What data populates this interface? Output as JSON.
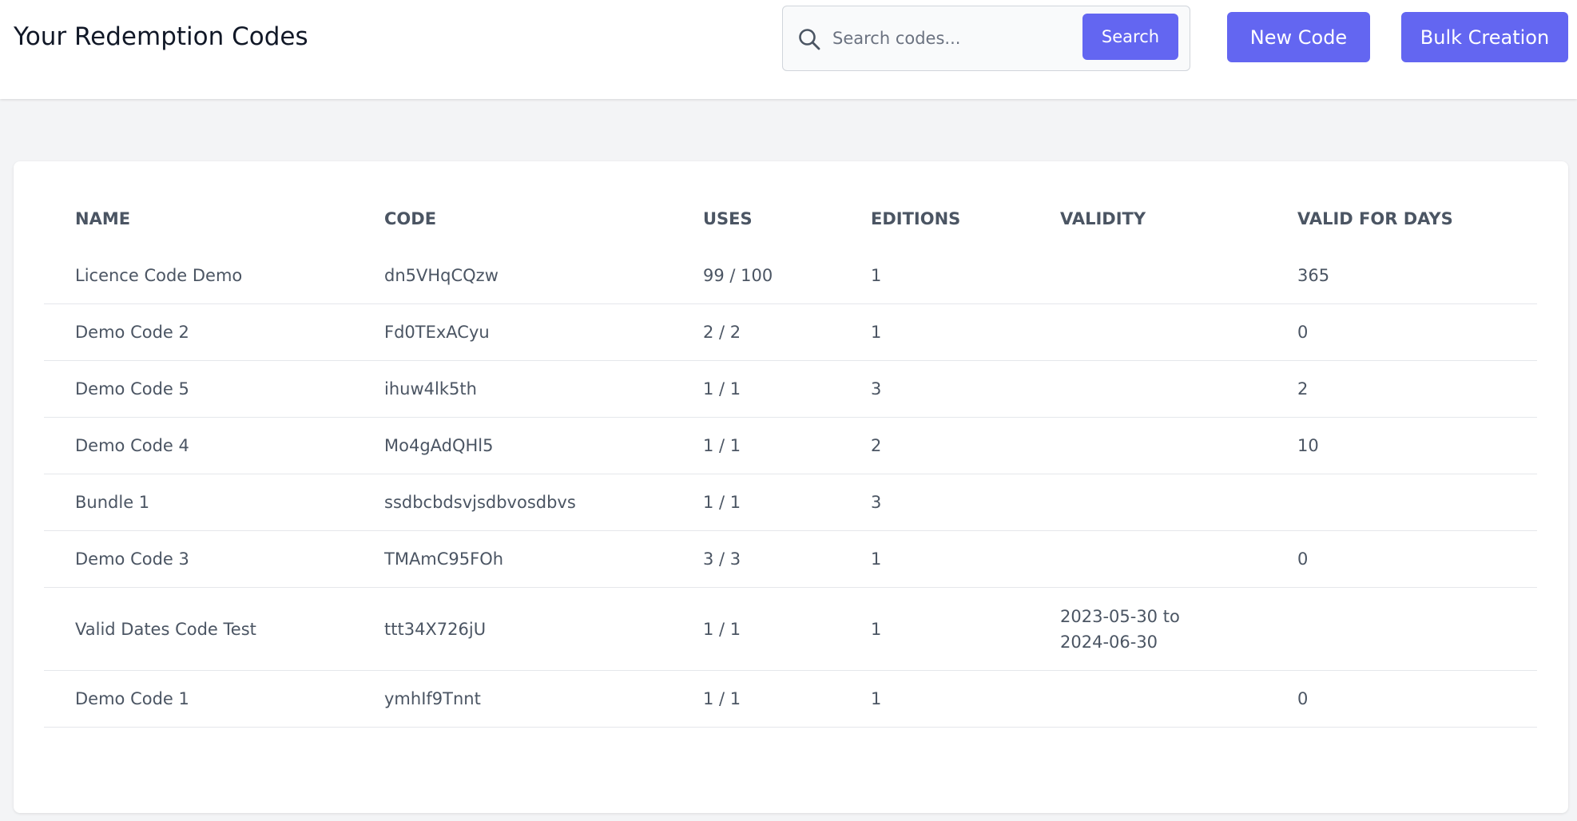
{
  "header": {
    "title": "Your Redemption Codes",
    "search": {
      "placeholder": "Search codes...",
      "value": "",
      "button_label": "Search"
    },
    "new_code_label": "New Code",
    "bulk_creation_label": "Bulk Creation"
  },
  "table": {
    "columns": [
      "Name",
      "Code",
      "Uses",
      "Editions",
      "Validity",
      "Valid for days"
    ],
    "rows": [
      {
        "name": "Licence Code Demo",
        "code": "dn5VHqCQzw",
        "uses": "99 / 100",
        "editions": "1",
        "validity_from": "",
        "validity_to": "",
        "valid_days": "365"
      },
      {
        "name": "Demo Code 2",
        "code": "Fd0TExACyu",
        "uses": "2 / 2",
        "editions": "1",
        "validity_from": "",
        "validity_to": "",
        "valid_days": "0"
      },
      {
        "name": "Demo Code 5",
        "code": "ihuw4lk5th",
        "uses": "1 / 1",
        "editions": "3",
        "validity_from": "",
        "validity_to": "",
        "valid_days": "2"
      },
      {
        "name": "Demo Code 4",
        "code": "Mo4gAdQHl5",
        "uses": "1 / 1",
        "editions": "2",
        "validity_from": "",
        "validity_to": "",
        "valid_days": "10"
      },
      {
        "name": "Bundle 1",
        "code": "ssdbcbdsvjsdbvosdbvs",
        "uses": "1 / 1",
        "editions": "3",
        "validity_from": "",
        "validity_to": "",
        "valid_days": ""
      },
      {
        "name": "Demo Code 3",
        "code": "TMAmC95FOh",
        "uses": "3 / 3",
        "editions": "1",
        "validity_from": "",
        "validity_to": "",
        "valid_days": "0"
      },
      {
        "name": "Valid Dates Code Test",
        "code": "ttt34X726jU",
        "uses": "1 / 1",
        "editions": "1",
        "validity_from": "2023-05-30 to",
        "validity_to": "2024-06-30",
        "valid_days": ""
      },
      {
        "name": "Demo Code 1",
        "code": "ymhIf9Tnnt",
        "uses": "1 / 1",
        "editions": "1",
        "validity_from": "",
        "validity_to": "",
        "valid_days": "0"
      }
    ]
  },
  "colors": {
    "accent": "#6366f1",
    "background": "#f3f4f6",
    "card": "#ffffff",
    "text": "#4b5563",
    "title": "#111827"
  },
  "icons": {
    "search": "search-icon"
  }
}
